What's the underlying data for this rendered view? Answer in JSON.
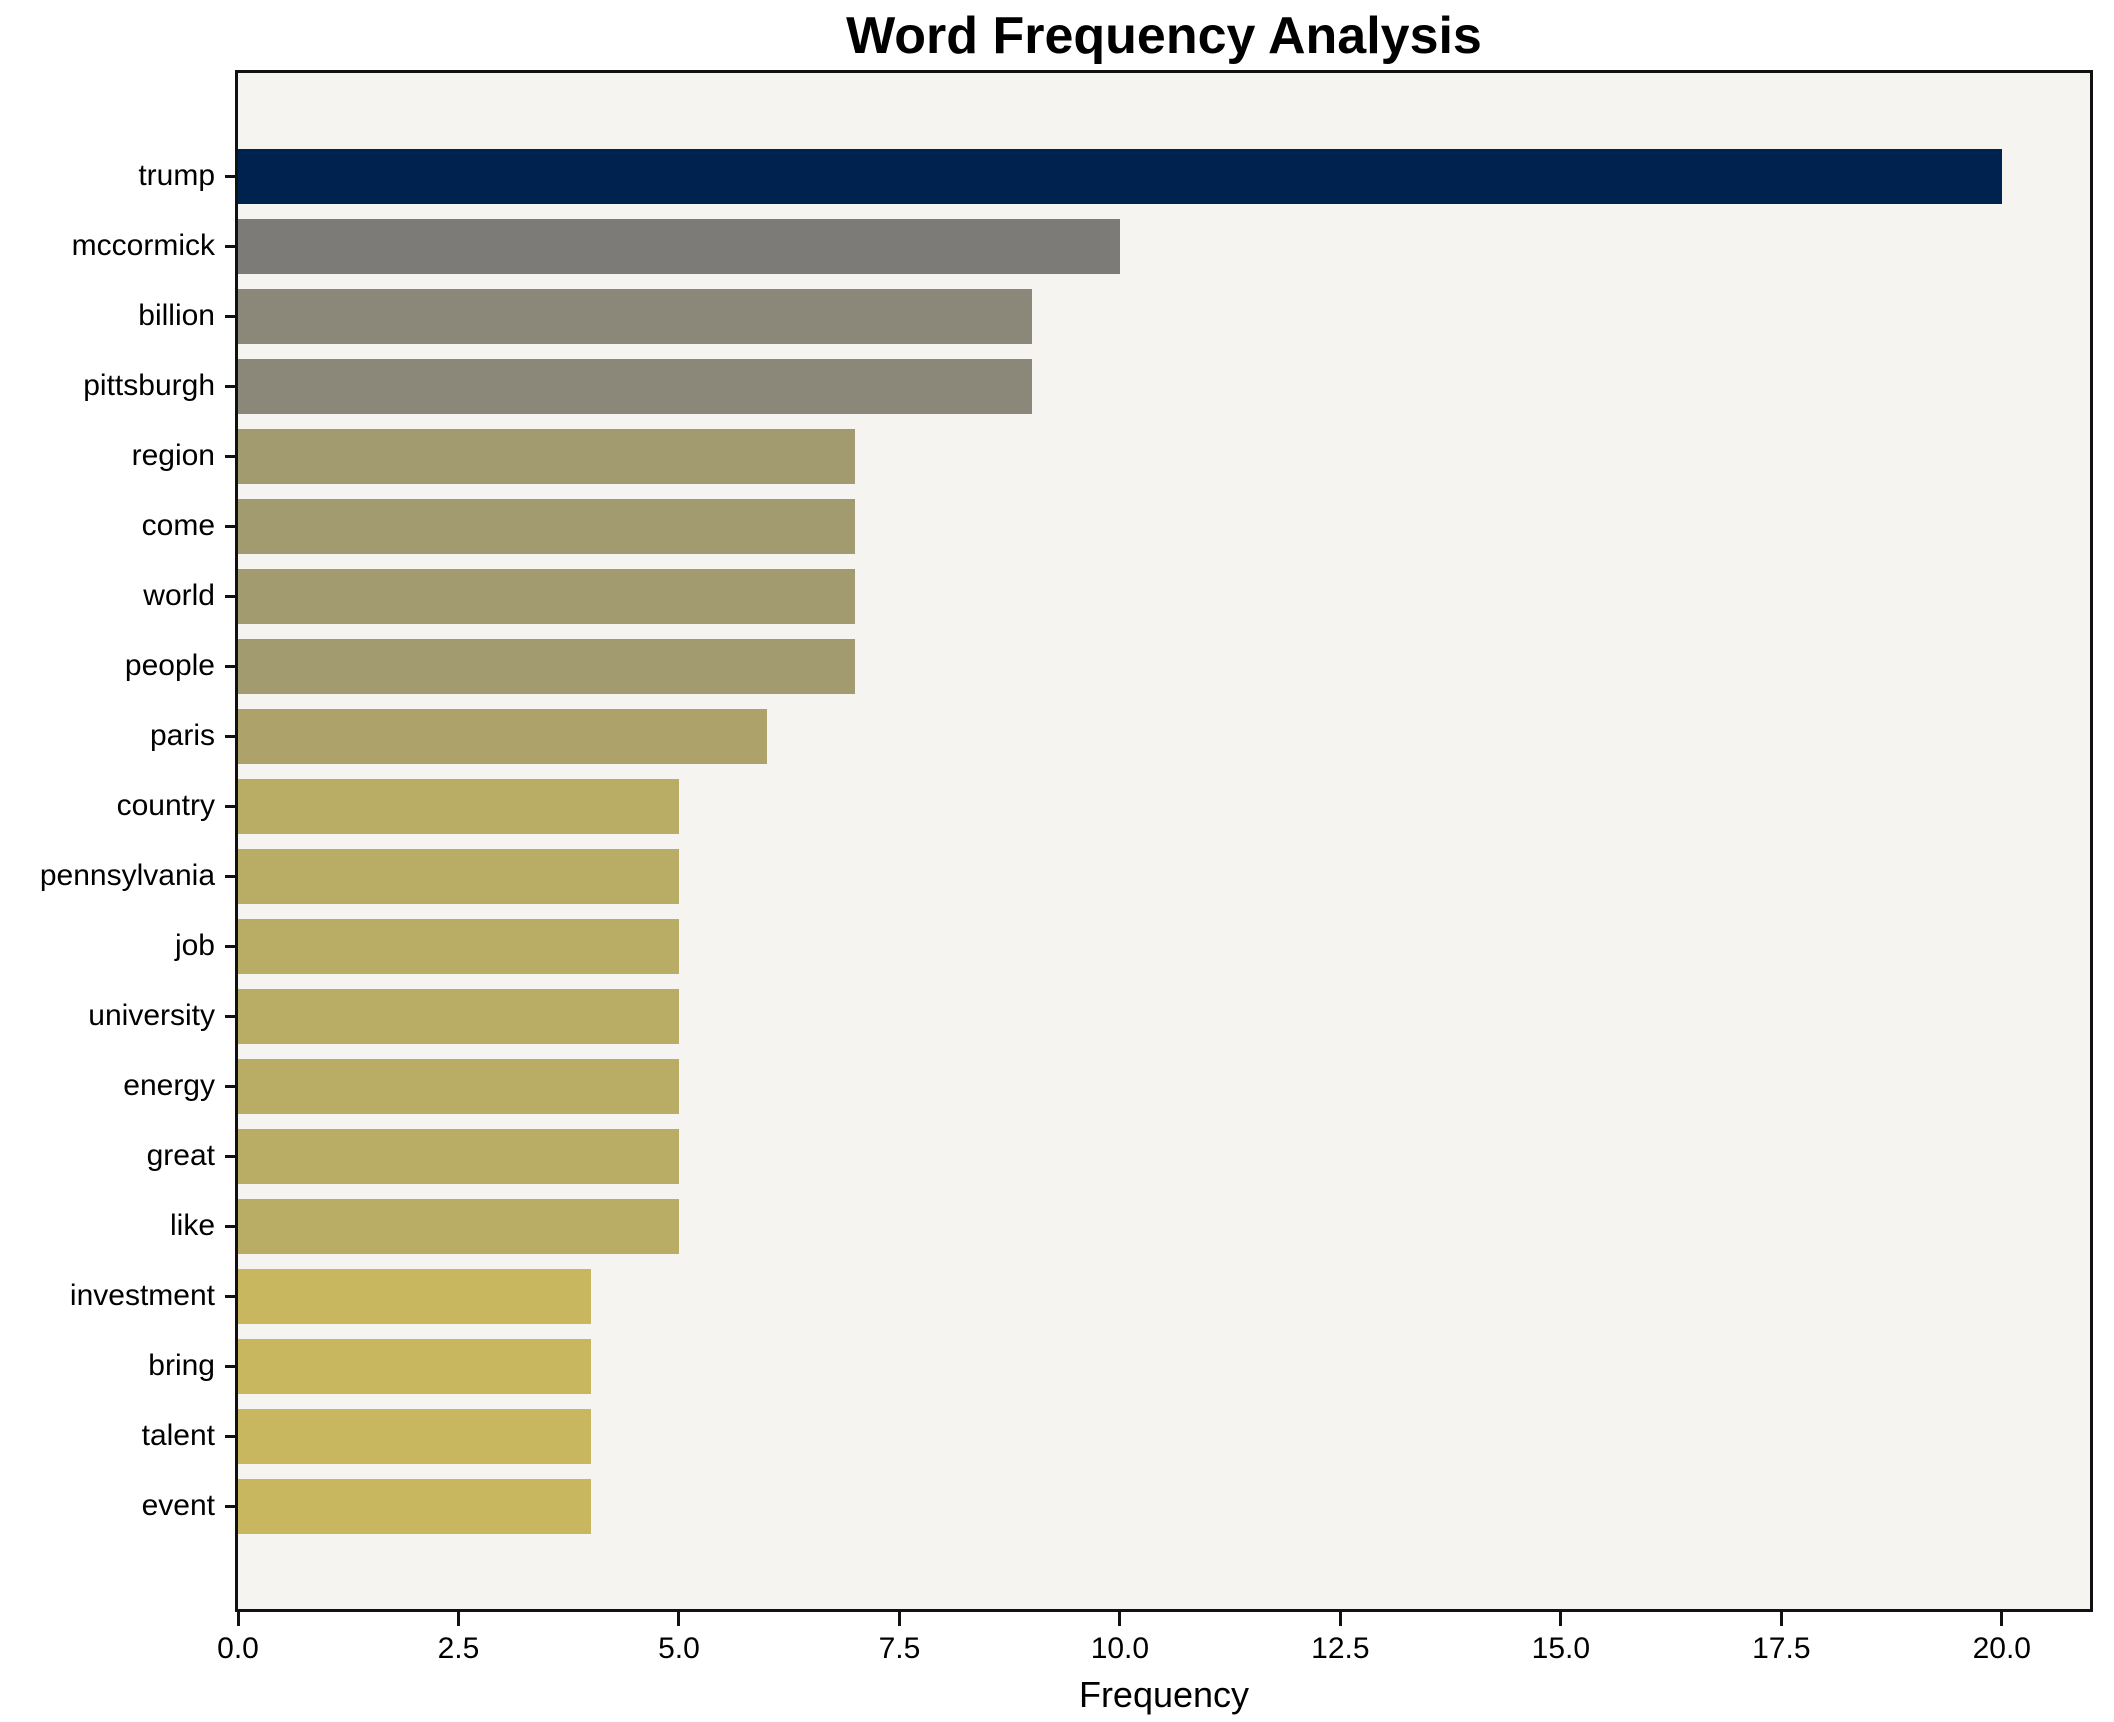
{
  "chart_data": {
    "type": "bar",
    "orientation": "horizontal",
    "title": "Word Frequency Analysis",
    "xlabel": "Frequency",
    "ylabel": "",
    "xlim": [
      0,
      21
    ],
    "grid": false,
    "legend_position": "none",
    "x_tick_labels": [
      "0.0",
      "2.5",
      "5.0",
      "7.5",
      "10.0",
      "12.5",
      "15.0",
      "17.5",
      "20.0"
    ],
    "x_tick_values": [
      0,
      2.5,
      5,
      7.5,
      10,
      12.5,
      15,
      17.5,
      20
    ],
    "categories": [
      "trump",
      "mccormick",
      "billion",
      "pittsburgh",
      "region",
      "come",
      "world",
      "people",
      "paris",
      "country",
      "pennsylvania",
      "job",
      "university",
      "energy",
      "great",
      "like",
      "investment",
      "bring",
      "talent",
      "event"
    ],
    "values": [
      20,
      10,
      9,
      9,
      7,
      7,
      7,
      7,
      6,
      5,
      5,
      5,
      5,
      5,
      5,
      5,
      4,
      4,
      4,
      4
    ],
    "bar_colors": [
      "#00224f",
      "#7c7b77",
      "#8b8779",
      "#8b8779",
      "#a39b70",
      "#a39b70",
      "#a39b70",
      "#a39b70",
      "#ada26a",
      "#b9ac64",
      "#b9ac64",
      "#b9ac64",
      "#b9ac64",
      "#b9ac64",
      "#b9ac64",
      "#b9ac64",
      "#c8b75e",
      "#c8b75e",
      "#c8b75e",
      "#c8b75e"
    ],
    "colors": {
      "plot_background": "#f5f4f1",
      "figure_background": "#ffffff",
      "spine": "#111111",
      "text": "#000000"
    }
  }
}
